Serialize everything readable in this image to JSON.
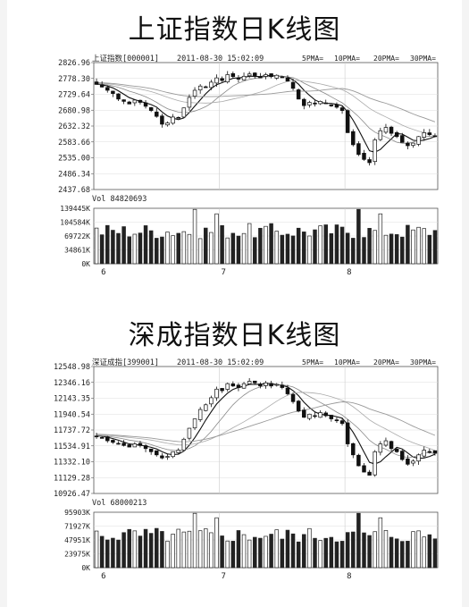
{
  "charts": [
    {
      "title": "上证指数日K线图",
      "header_name": "上证指数[000001]",
      "header_time": "2011-08-30 15:02:09",
      "ma_legend": [
        "5PMA=",
        "10PMA=",
        "20PMA=",
        "30PMA="
      ],
      "vol_label": "Vol 84820693",
      "price_ticks": [
        "2826.96",
        "2778.30",
        "2729.64",
        "2680.98",
        "2632.32",
        "2583.66",
        "2535.00",
        "2486.34",
        "2437.68"
      ],
      "vol_ticks": [
        "139445K",
        "104584K",
        "69722K",
        "34861K",
        "0K"
      ],
      "x_labels": [
        "6",
        "7",
        "8"
      ]
    },
    {
      "title": "深成指数日K线图",
      "header_name": "深证成指[399001]",
      "header_time": "2011-08-30 15:02:09",
      "ma_legend": [
        "5PMA=",
        "10PMA=",
        "20PMA=",
        "30PMA="
      ],
      "vol_label": "Vol 68000213",
      "price_ticks": [
        "12548.98",
        "12346.16",
        "12143.35",
        "11940.54",
        "11737.72",
        "11534.91",
        "11332.10",
        "11129.28",
        "10926.47"
      ],
      "vol_ticks": [
        "95903K",
        "71927K",
        "47951K",
        "23975K",
        "0K"
      ],
      "x_labels": [
        "6",
        "7",
        "8"
      ]
    }
  ],
  "chart_data": [
    {
      "type": "candlestick",
      "title": "上证指数日K线图",
      "ylim": [
        2437.68,
        2826.96
      ],
      "y_ticks": [
        2826.96,
        2778.3,
        2729.64,
        2680.98,
        2632.32,
        2583.66,
        2535.0,
        2486.34,
        2437.68
      ],
      "volume_ylim": [
        0,
        139445
      ],
      "volume_unit": "K",
      "x_tick_labels": [
        "6",
        "7",
        "8"
      ],
      "closes": [
        2760,
        2752,
        2742,
        2732,
        2715,
        2708,
        2700,
        2712,
        2705,
        2693,
        2680,
        2662,
        2638,
        2642,
        2660,
        2658,
        2688,
        2720,
        2742,
        2755,
        2752,
        2767,
        2780,
        2772,
        2790,
        2784,
        2776,
        2785,
        2792,
        2787,
        2780,
        2790,
        2784,
        2788,
        2782,
        2770,
        2748,
        2715,
        2695,
        2705,
        2700,
        2708,
        2702,
        2694,
        2690,
        2680,
        2612,
        2575,
        2545,
        2530,
        2520,
        2590,
        2618,
        2628,
        2610,
        2600,
        2582,
        2572,
        2580,
        2600,
        2612,
        2606,
        2600
      ]
    },
    {
      "type": "candlestick",
      "title": "深成指数日K线图",
      "ylim": [
        10926.47,
        12548.98
      ],
      "y_ticks": [
        12548.98,
        12346.16,
        12143.35,
        11940.54,
        11737.72,
        11534.91,
        11332.1,
        11129.28,
        10926.47
      ],
      "volume_ylim": [
        0,
        95903
      ],
      "volume_unit": "K",
      "x_tick_labels": [
        "6",
        "7",
        "8"
      ],
      "closes": [
        11660,
        11640,
        11600,
        11580,
        11560,
        11540,
        11520,
        11560,
        11540,
        11500,
        11460,
        11420,
        11380,
        11400,
        11460,
        11480,
        11620,
        11760,
        11880,
        12000,
        12060,
        12150,
        12260,
        12240,
        12330,
        12300,
        12280,
        12330,
        12360,
        12340,
        12300,
        12340,
        12300,
        12320,
        12280,
        12200,
        12100,
        11980,
        11900,
        11940,
        11920,
        11960,
        11920,
        11880,
        11860,
        11820,
        11560,
        11420,
        11280,
        11200,
        11160,
        11460,
        11560,
        11600,
        11500,
        11460,
        11360,
        11300,
        11340,
        11420,
        11480,
        11460,
        11440
      ]
    }
  ]
}
